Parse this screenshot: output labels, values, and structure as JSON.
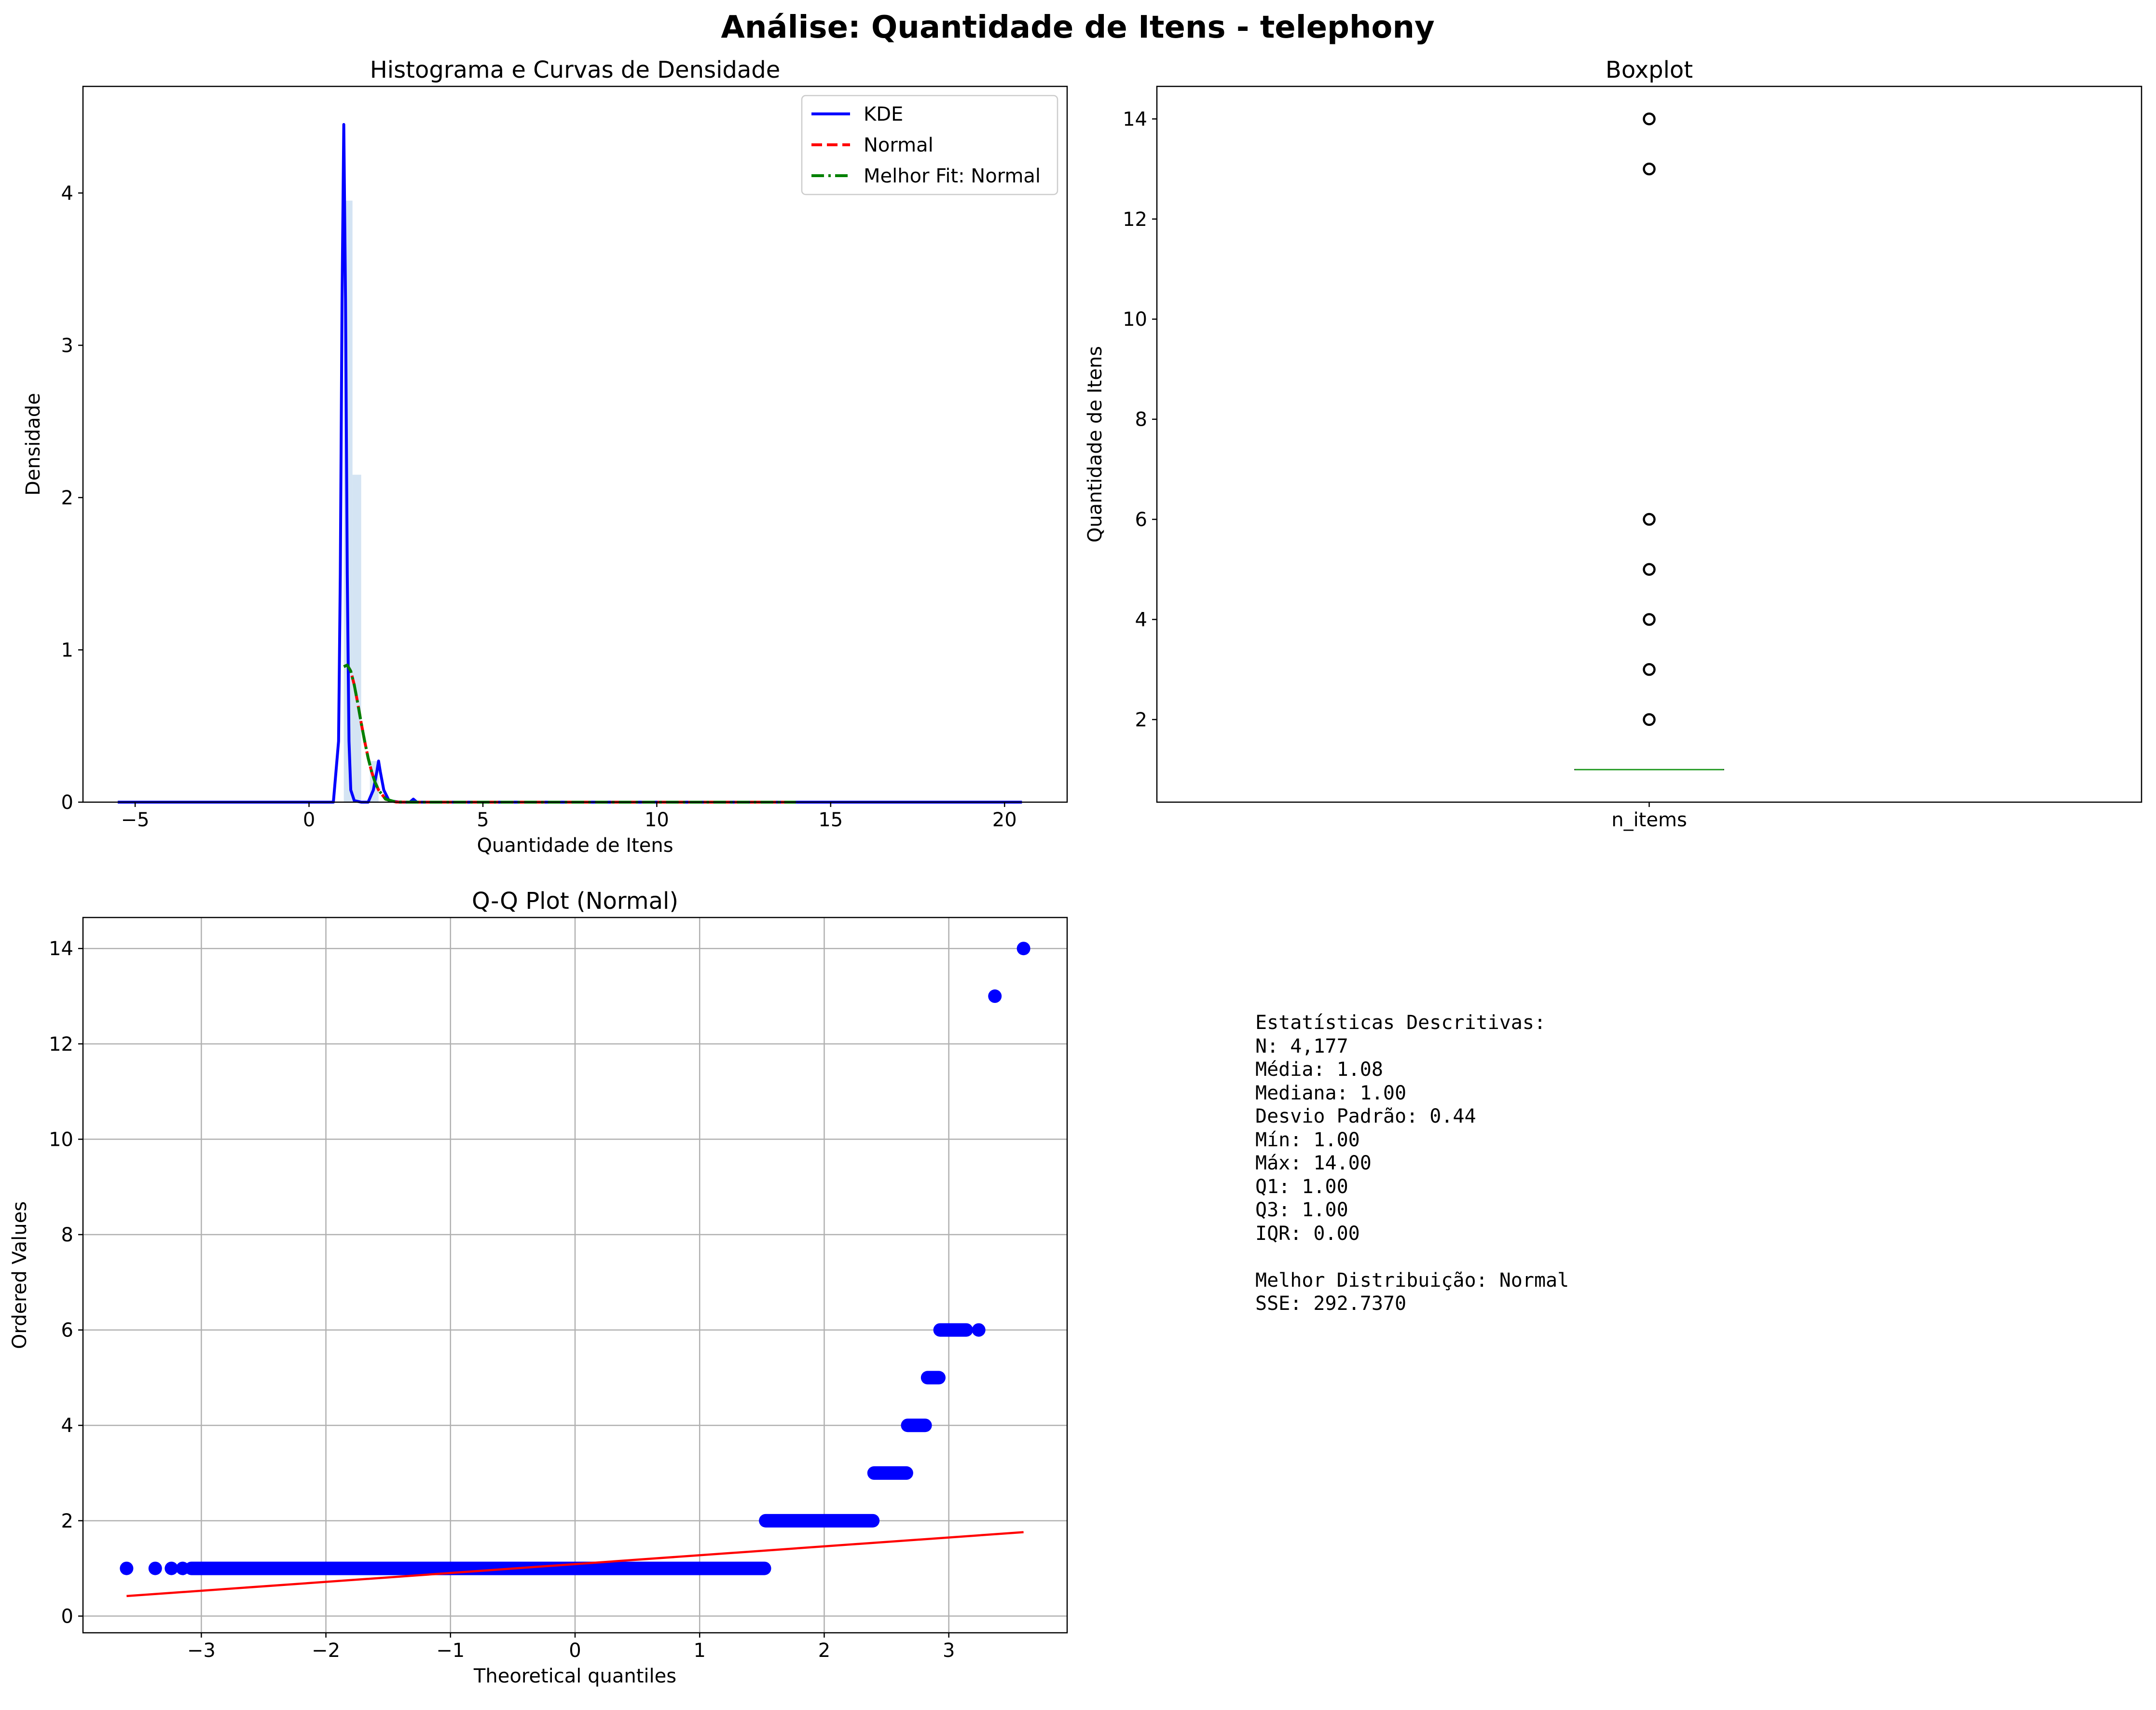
{
  "suptitle": "Análise: Quantidade de Itens - telephony",
  "chart_data": [
    {
      "type": "line",
      "title": "Histograma e Curvas de Densidade",
      "xlabel": "Quantidade de Itens",
      "ylabel": "Densidade",
      "xlim": [
        -6.5,
        21.8
      ],
      "ylim": [
        0,
        4.7
      ],
      "xticks": [
        -5,
        0,
        5,
        10,
        15,
        20
      ],
      "yticks": [
        0,
        1,
        2,
        3,
        4
      ],
      "xtick_labels": [
        "−5",
        "0",
        "5",
        "10",
        "15",
        "20"
      ],
      "ytick_labels": [
        "0",
        "1",
        "2",
        "3",
        "4"
      ],
      "grid": false,
      "legend_position": "upper right",
      "histogram": {
        "color": "#c6dbef",
        "bins": [
          {
            "x0": 1.0,
            "x1": 1.25,
            "density": 3.95
          },
          {
            "x0": 1.25,
            "x1": 1.5,
            "density": 2.15
          },
          {
            "x0": 1.75,
            "x1": 2.0,
            "density": 0.27
          }
        ]
      },
      "series": [
        {
          "name": "KDE",
          "color": "#0000ff",
          "style": "solid",
          "x": [
            -5.5,
            0.7,
            0.85,
            0.9,
            0.95,
            1.0,
            1.05,
            1.1,
            1.15,
            1.2,
            1.3,
            1.5,
            1.7,
            1.85,
            1.95,
            2.0,
            2.05,
            2.15,
            2.3,
            2.6,
            2.9,
            3.0,
            3.1,
            3.4,
            20.5
          ],
          "y": [
            0,
            0,
            0.4,
            1.5,
            3.3,
            4.45,
            3.3,
            1.5,
            0.4,
            0.08,
            0.01,
            0,
            0,
            0.08,
            0.2,
            0.27,
            0.2,
            0.08,
            0.01,
            0,
            0,
            0.02,
            0,
            0,
            0
          ]
        },
        {
          "name": "Normal",
          "color": "#ff0000",
          "style": "dashed",
          "x": [
            1.0,
            1.1,
            1.2,
            1.3,
            1.4,
            1.5,
            1.6,
            1.7,
            1.8,
            1.9,
            2.0,
            2.2,
            2.5,
            3.0,
            14.0
          ],
          "y": [
            0.89,
            0.9,
            0.86,
            0.77,
            0.65,
            0.52,
            0.4,
            0.29,
            0.2,
            0.13,
            0.08,
            0.02,
            0.001,
            0,
            0
          ]
        },
        {
          "name": "Melhor Fit: Normal",
          "color": "#008000",
          "style": "dashdot",
          "x": [
            1.0,
            1.1,
            1.2,
            1.3,
            1.4,
            1.5,
            1.6,
            1.7,
            1.8,
            1.9,
            2.0,
            2.2,
            2.5,
            3.0,
            14.0
          ],
          "y": [
            0.89,
            0.9,
            0.86,
            0.77,
            0.65,
            0.52,
            0.4,
            0.29,
            0.2,
            0.13,
            0.08,
            0.02,
            0.001,
            0,
            0
          ]
        }
      ]
    },
    {
      "type": "box",
      "title": "Boxplot",
      "xlabel": "",
      "ylabel": "Quantidade de Itens",
      "category": "n_items",
      "ylim": [
        0.35,
        14.65
      ],
      "yticks": [
        2,
        4,
        6,
        8,
        10,
        12,
        14
      ],
      "ytick_labels": [
        "2",
        "4",
        "6",
        "8",
        "10",
        "12",
        "14"
      ],
      "median": 1.0,
      "q1": 1.0,
      "q3": 1.0,
      "whisker_low": 1.0,
      "whisker_high": 1.0,
      "outliers": [
        2,
        3,
        4,
        5,
        6,
        13,
        14
      ],
      "median_color": "#2ca02c",
      "grid": false
    },
    {
      "type": "scatter",
      "title": "Q-Q Plot (Normal)",
      "xlabel": "Theoretical quantiles",
      "ylabel": "Ordered Values",
      "xlim": [
        -3.95,
        3.95
      ],
      "ylim": [
        -0.35,
        14.65
      ],
      "xticks": [
        -3,
        -2,
        -1,
        0,
        1,
        2,
        3
      ],
      "yticks": [
        0,
        2,
        4,
        6,
        8,
        10,
        12,
        14
      ],
      "xtick_labels": [
        "−3",
        "−2",
        "−1",
        "0",
        "1",
        "2",
        "3"
      ],
      "ytick_labels": [
        "0",
        "2",
        "4",
        "6",
        "8",
        "10",
        "12",
        "14"
      ],
      "grid": true,
      "point_color": "#0000ff",
      "line_color": "#ff0000",
      "fit_line": {
        "x": [
          -3.6,
          3.6
        ],
        "y": [
          0.42,
          1.76
        ]
      },
      "segments": [
        {
          "x0": -3.6,
          "x1": -3.6,
          "y": 1
        },
        {
          "x0": -3.37,
          "x1": -3.37,
          "y": 1
        },
        {
          "x0": -3.24,
          "x1": -3.24,
          "y": 1
        },
        {
          "x0": -3.15,
          "x1": -3.15,
          "y": 1
        },
        {
          "x0": -3.08,
          "x1": 1.52,
          "y": 1
        },
        {
          "x0": 1.53,
          "x1": 2.39,
          "y": 2
        },
        {
          "x0": 2.4,
          "x1": 2.66,
          "y": 3
        },
        {
          "x0": 2.67,
          "x1": 2.81,
          "y": 4
        },
        {
          "x0": 2.83,
          "x1": 2.92,
          "y": 5
        },
        {
          "x0": 2.93,
          "x1": 3.14,
          "y": 6
        },
        {
          "x0": 3.24,
          "x1": 3.24,
          "y": 6
        },
        {
          "x0": 3.37,
          "x1": 3.37,
          "y": 13
        },
        {
          "x0": 3.6,
          "x1": 3.6,
          "y": 14
        }
      ]
    }
  ],
  "stats_text": [
    "Estatísticas Descritivas:",
    "N: 4,177",
    "Média: 1.08",
    "Mediana: 1.00",
    "Desvio Padrão: 0.44",
    "Mín: 1.00",
    "Máx: 14.00",
    "Q1: 1.00",
    "Q3: 1.00",
    "IQR: 0.00",
    "",
    "Melhor Distribuição: Normal",
    "SSE: 292.7370"
  ]
}
